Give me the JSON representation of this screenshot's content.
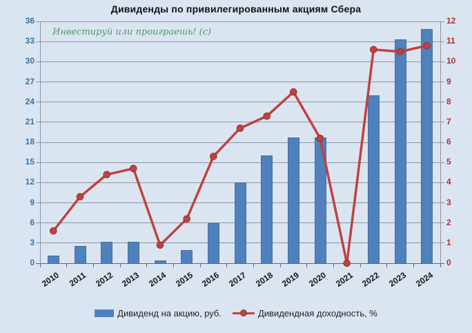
{
  "title": "Дивиденды по привилегированным  акциям Сбера",
  "watermark": "Инвестируй или проиграешь! (с)",
  "chart_data": {
    "type": "combo_bar_line",
    "title": "Дивиденды по привилегированным  акциям Сбера",
    "categories": [
      "2010",
      "2011",
      "2012",
      "2013",
      "2014",
      "2015",
      "2016",
      "2017",
      "2018",
      "2019",
      "2020",
      "2021",
      "2022",
      "2023",
      "2024"
    ],
    "series": [
      {
        "name": "Дивиденд на акцию, руб.",
        "type": "bar",
        "axis": "left",
        "color": "#4f81bd",
        "border_color": "#41719c",
        "values": [
          1.15,
          2.59,
          3.2,
          3.2,
          0.45,
          1.97,
          6,
          12,
          16,
          18.7,
          18.7,
          0,
          25,
          33.3,
          34.84
        ]
      },
      {
        "name": "Дивидендная доходность, %",
        "type": "line",
        "axis": "right",
        "color": "#bf4240",
        "marker_edge_color": "#93322f",
        "values": [
          1.6,
          3.3,
          4.4,
          4.7,
          0.9,
          2.2,
          5.3,
          6.7,
          7.3,
          8.5,
          6.2,
          0,
          10.6,
          10.5,
          10.8
        ]
      }
    ],
    "left_axis": {
      "min": 0,
      "max": 36,
      "step": 3,
      "label_color": "#2e77a6"
    },
    "right_axis": {
      "min": 0,
      "max": 12,
      "step": 1,
      "label_color": "#b03030"
    },
    "grid": true,
    "gridline_color": "#8795a3",
    "axis_line_color": "#5a6673",
    "x_label_color": "#141414",
    "background_color": "#dbe5f1",
    "watermark_color": "#4c9a60",
    "legend_position": "bottom"
  }
}
